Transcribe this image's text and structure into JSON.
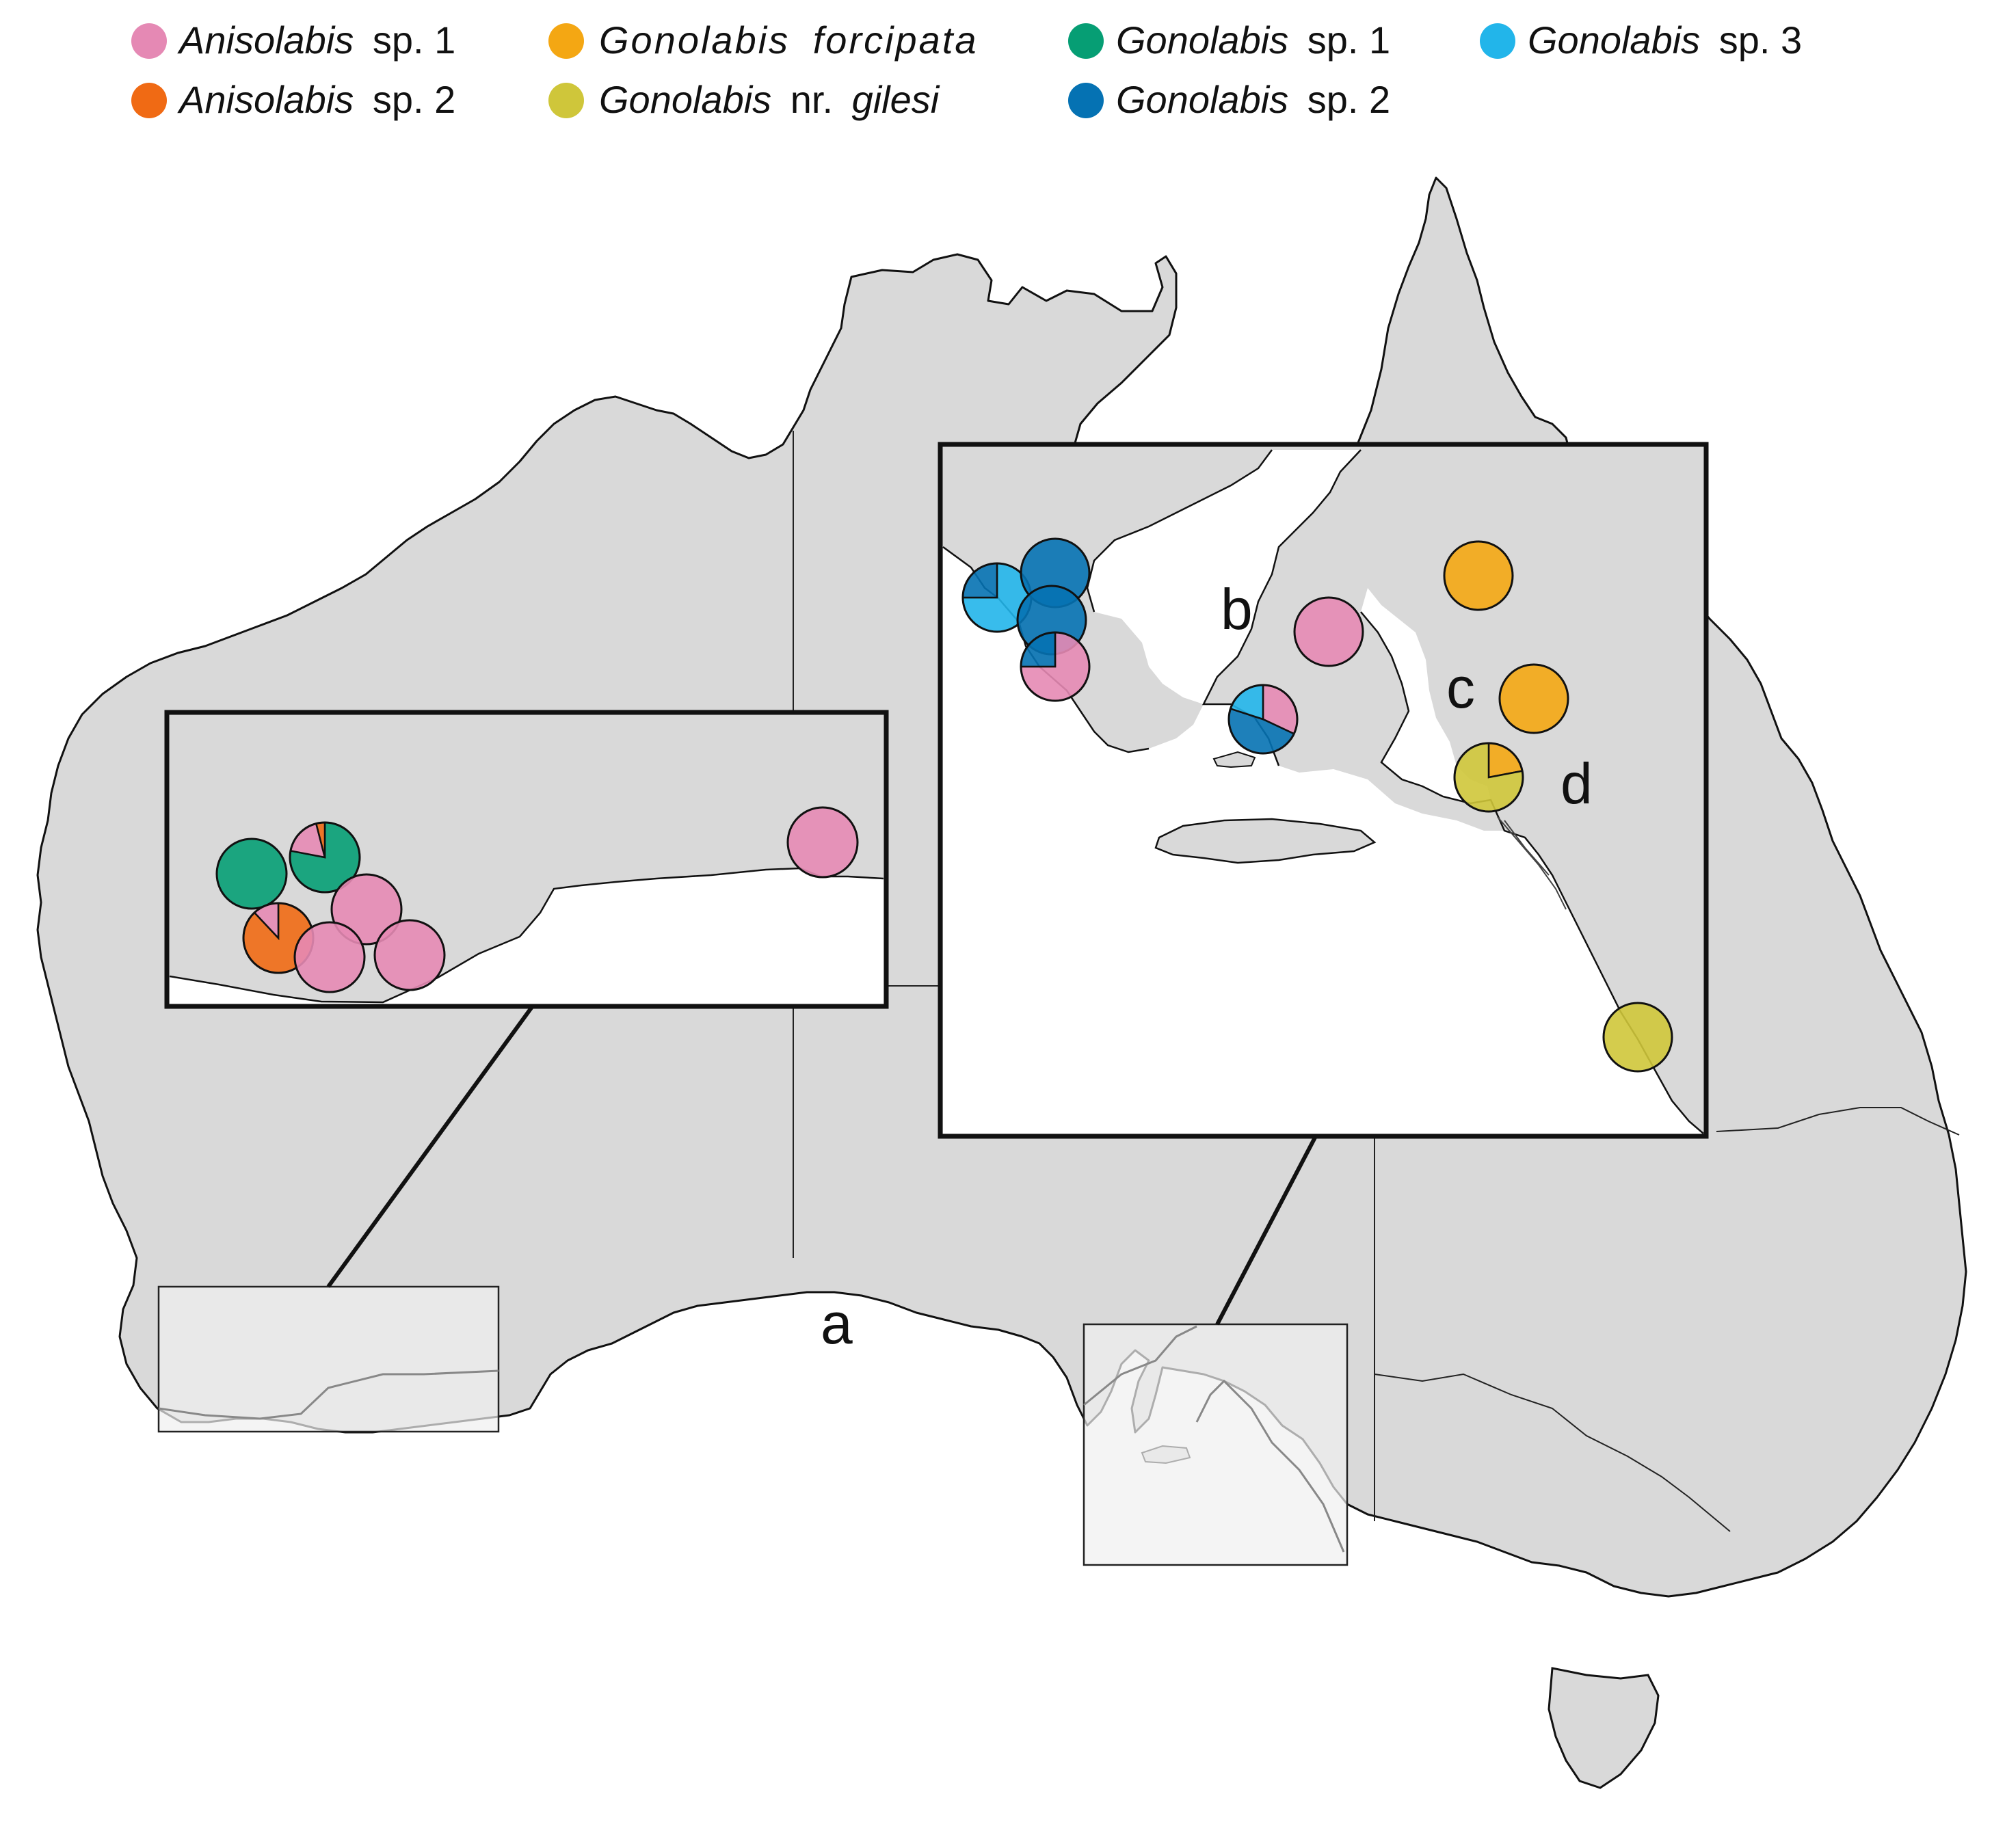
{
  "legend": {
    "items": [
      {
        "genus": "Anisolabis",
        "suffix": "sp. 1",
        "suffix_italic": false,
        "color": "#e589b4",
        "icon": "legend-dot-icon"
      },
      {
        "genus": "Gonolabis",
        "suffix": "forcipata",
        "suffix_italic": true,
        "color": "#f4a713",
        "icon": "legend-dot-icon"
      },
      {
        "genus": "Gonolabis",
        "suffix": "sp. 1",
        "suffix_italic": false,
        "color": "#069e74",
        "icon": "legend-dot-icon"
      },
      {
        "genus": "Gonolabis",
        "suffix": "sp. 3",
        "suffix_italic": false,
        "color": "#22b5ea",
        "icon": "legend-dot-icon"
      },
      {
        "genus": "Anisolabis",
        "suffix": "sp. 2",
        "suffix_italic": false,
        "color": "#f06a14",
        "icon": "legend-dot-icon"
      },
      {
        "genus": "Gonolabis",
        "suffix": "nr.",
        "suffix2": "gilesi",
        "suffix_italic": false,
        "color": "#cfc63a",
        "icon": "legend-dot-icon"
      },
      {
        "genus": "Gonolabis",
        "suffix": "sp. 2",
        "suffix_italic": false,
        "color": "#0572b3",
        "icon": "legend-dot-icon"
      }
    ]
  },
  "map": {
    "land_color": "#d9d9d9",
    "border_color": "#222222",
    "inset_frame_color": "#111111",
    "region_labels": {
      "a": "a",
      "b": "b",
      "c": "c",
      "d": "d"
    },
    "sites_west": [
      {
        "id": "w1",
        "shares": {
          "Gonolabis sp. 1": 1.0
        }
      },
      {
        "id": "w2",
        "shares": {
          "Gonolabis sp. 1": 0.78,
          "Anisolabis sp. 1": 0.18,
          "Anisolabis sp. 2": 0.04
        }
      },
      {
        "id": "w3",
        "shares": {
          "Anisolabis sp. 2": 0.88,
          "Anisolabis sp. 1": 0.12
        }
      },
      {
        "id": "w4",
        "shares": {
          "Anisolabis sp. 1": 1.0
        }
      },
      {
        "id": "w5",
        "shares": {
          "Anisolabis sp. 1": 1.0
        }
      },
      {
        "id": "w6",
        "shares": {
          "Anisolabis sp. 1": 1.0
        }
      },
      {
        "id": "w7",
        "shares": {
          "Anisolabis sp. 1": 1.0
        }
      }
    ],
    "sites_east": [
      {
        "id": "e1",
        "shares": {
          "Gonolabis sp. 3": 0.75,
          "Gonolabis sp. 2": 0.25
        }
      },
      {
        "id": "e2",
        "shares": {
          "Gonolabis sp. 2": 1.0
        }
      },
      {
        "id": "e3",
        "shares": {
          "Gonolabis sp. 2": 1.0
        }
      },
      {
        "id": "e4",
        "shares": {
          "Anisolabis sp. 1": 0.75,
          "Gonolabis sp. 2": 0.25
        }
      },
      {
        "id": "e5",
        "shares": {
          "Anisolabis sp. 1": 1.0
        }
      },
      {
        "id": "e6",
        "shares": {
          "Anisolabis sp. 1": 0.32,
          "Gonolabis sp. 2": 0.48,
          "Gonolabis sp. 3": 0.2
        }
      },
      {
        "id": "e7",
        "shares": {
          "Gonolabis forcipata": 1.0
        }
      },
      {
        "id": "e8",
        "shares": {
          "Gonolabis forcipata": 1.0
        }
      },
      {
        "id": "e9",
        "shares": {
          "Gonolabis forcipata": 0.22,
          "Gonolabis nr. gilesi": 0.78
        }
      },
      {
        "id": "e10",
        "shares": {
          "Gonolabis nr. gilesi": 1.0
        }
      }
    ]
  }
}
